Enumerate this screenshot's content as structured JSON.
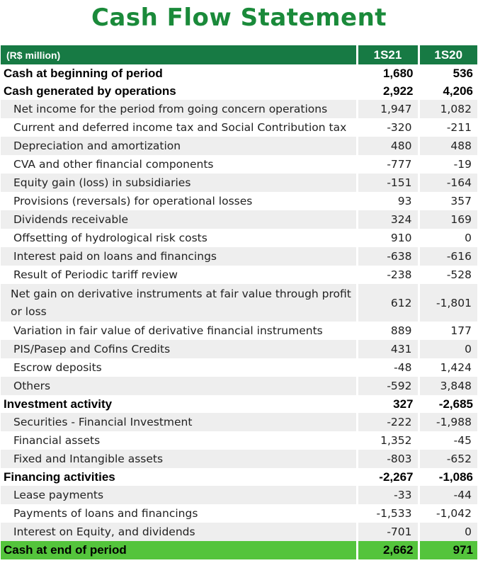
{
  "title": "Cash Flow Statement",
  "header": {
    "label": "(R$ million)",
    "col1": "1S21",
    "col2": "1S20"
  },
  "rows": [
    {
      "type": "main",
      "label": "Cash at beginning of period",
      "v1": "1,680",
      "v2": "536"
    },
    {
      "type": "main",
      "label": "Cash generated by operations",
      "v1": "2,922",
      "v2": "4,206"
    },
    {
      "type": "sub",
      "label": "Net income for the period from going concern operations",
      "v1": "1,947",
      "v2": "1,082"
    },
    {
      "type": "sub",
      "label": "Current and deferred income tax and Social Contribution tax",
      "v1": "-320",
      "v2": "-211"
    },
    {
      "type": "sub",
      "label": "Depreciation and amortization",
      "v1": "480",
      "v2": "488"
    },
    {
      "type": "sub",
      "label": "CVA and other financial components",
      "v1": "-777",
      "v2": "-19"
    },
    {
      "type": "sub",
      "label": "Equity gain (loss) in subsidiaries",
      "v1": "-151",
      "v2": "-164"
    },
    {
      "type": "sub",
      "label": "Provisions (reversals) for operational losses",
      "v1": "93",
      "v2": "357"
    },
    {
      "type": "sub",
      "label": "Dividends receivable",
      "v1": "324",
      "v2": "169"
    },
    {
      "type": "sub",
      "label": "Offsetting of hydrological risk costs",
      "v1": "910",
      "v2": "0"
    },
    {
      "type": "sub",
      "label": "Interest paid on loans and financings",
      "v1": "-638",
      "v2": "-616"
    },
    {
      "type": "sub",
      "label": "Result of Periodic tariff review",
      "v1": "-238",
      "v2": "-528"
    },
    {
      "type": "sub-tall",
      "label": "Net gain on derivative instruments at fair value through profit or loss",
      "v1": "612",
      "v2": "-1,801"
    },
    {
      "type": "sub",
      "label": "Variation in fair value of derivative financial instruments",
      "v1": "889",
      "v2": "177"
    },
    {
      "type": "sub",
      "label": "PIS/Pasep and Cofins Credits",
      "v1": "431",
      "v2": "0"
    },
    {
      "type": "sub",
      "label": "Escrow deposits",
      "v1": "-48",
      "v2": "1,424"
    },
    {
      "type": "sub",
      "label": "Others",
      "v1": "-592",
      "v2": "3,848"
    },
    {
      "type": "main",
      "label": "Investment activity",
      "v1": "327",
      "v2": "-2,685"
    },
    {
      "type": "sub",
      "label": "Securities - Financial Investment",
      "v1": "-222",
      "v2": "-1,988"
    },
    {
      "type": "sub",
      "label": "Financial assets",
      "v1": "1,352",
      "v2": "-45"
    },
    {
      "type": "sub",
      "label": "Fixed and Intangible assets",
      "v1": "-803",
      "v2": "-652"
    },
    {
      "type": "main",
      "label": "Financing activities",
      "v1": "-2,267",
      "v2": "-1,086"
    },
    {
      "type": "sub",
      "label": "Lease payments",
      "v1": "-33",
      "v2": "-44"
    },
    {
      "type": "sub",
      "label": "Payments of loans and financings",
      "v1": "-1,533",
      "v2": "-1,042"
    },
    {
      "type": "sub",
      "label": "Interest on Equity, and dividends",
      "v1": "-701",
      "v2": "0"
    },
    {
      "type": "total",
      "label": "Cash at end of period",
      "v1": "2,662",
      "v2": "971"
    }
  ],
  "colors": {
    "title": "#1a8a3a",
    "header_bg": "#177a44",
    "total_bg": "#54c43c",
    "shade": "#eeeeee"
  }
}
